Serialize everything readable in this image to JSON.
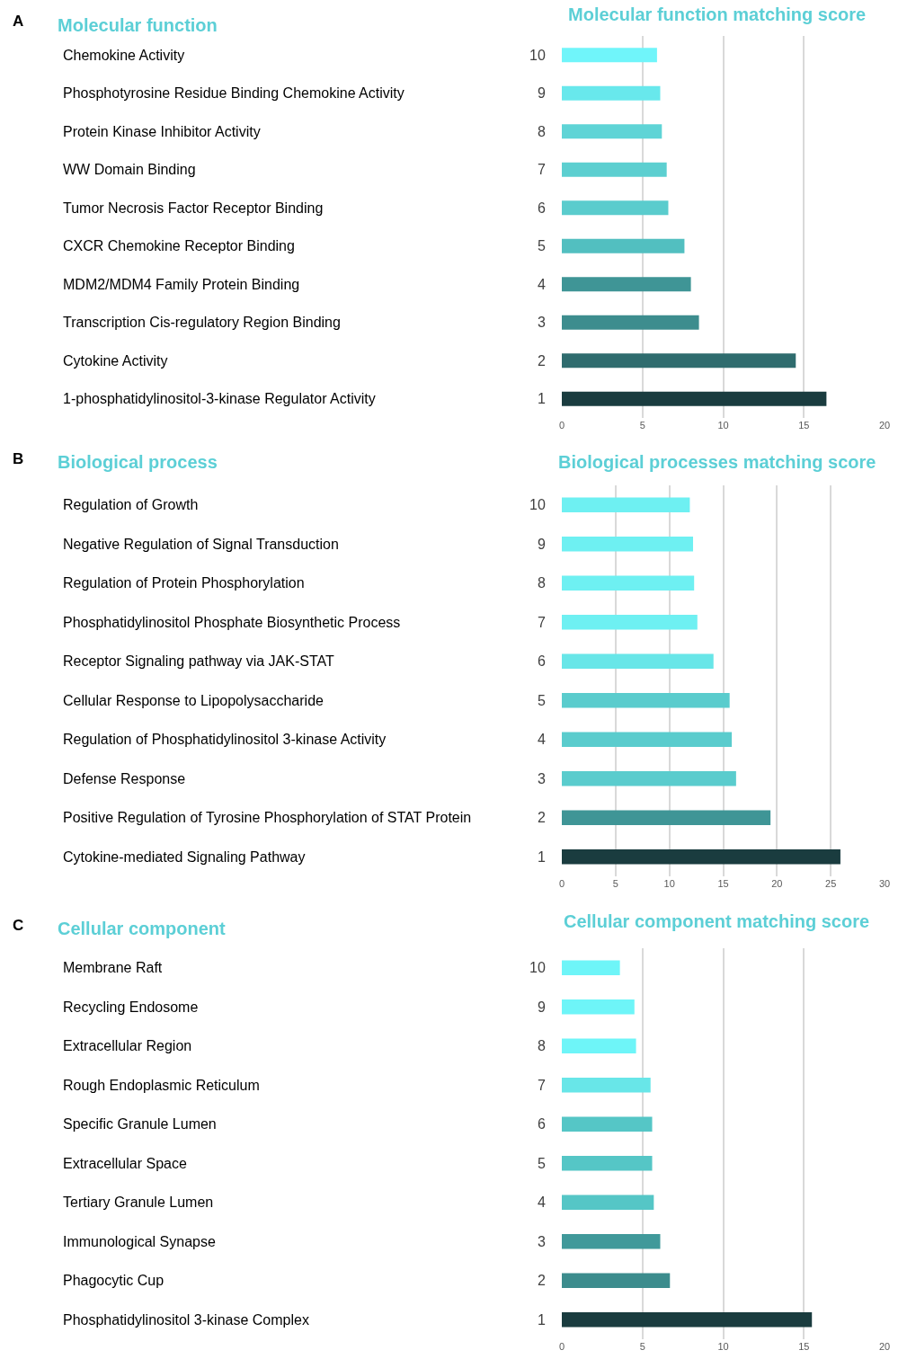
{
  "chart_data": [
    {
      "type": "bar",
      "orientation": "horizontal",
      "title": "Molecular function matching score",
      "categories": [
        "10",
        "9",
        "8",
        "7",
        "6",
        "5",
        "4",
        "3",
        "2",
        "1"
      ],
      "values": [
        5.9,
        6.1,
        6.2,
        6.5,
        6.6,
        7.6,
        8.0,
        8.5,
        14.5,
        16.4
      ],
      "colors": [
        "#70f5fa",
        "#68e8ec",
        "#5fd4d6",
        "#5ccfd0",
        "#5acccd",
        "#52bfc0",
        "#3f9596",
        "#3d8d8e",
        "#2f6c6e",
        "#1a3c3f"
      ],
      "xlim": [
        0,
        20
      ],
      "xticks": [
        0,
        5,
        10,
        15,
        20
      ],
      "grid": "x",
      "annotations": [
        "A",
        "Molecular function",
        "Chemokine Activity",
        "Phosphotyrosine Residue Binding Chemokine Activity",
        "Protein Kinase Inhibitor Activity",
        "WW Domain Binding",
        "Tumor Necrosis Factor Receptor Binding",
        "CXCR Chemokine Receptor Binding",
        "MDM2/MDM4 Family Protein Binding",
        "Transcription Cis-regulatory Region Binding",
        "Cytokine Activity",
        "1-phosphatidylinositol-3-kinase Regulator Activity"
      ]
    },
    {
      "type": "bar",
      "orientation": "horizontal",
      "title": "Biological processes matching score",
      "categories": [
        "10",
        "9",
        "8",
        "7",
        "6",
        "5",
        "4",
        "3",
        "2",
        "1"
      ],
      "values": [
        11.9,
        12.2,
        12.3,
        12.6,
        14.1,
        15.6,
        15.8,
        16.2,
        19.4,
        25.9
      ],
      "colors": [
        "#6ef0f2",
        "#6ef0f2",
        "#6ef0f2",
        "#6ef0f2",
        "#68e6e8",
        "#5acccd",
        "#5acccd",
        "#5acccd",
        "#3f9596",
        "#1a3c3f"
      ],
      "xlim": [
        0,
        30
      ],
      "xticks": [
        0,
        5,
        10,
        15,
        20,
        25,
        30
      ],
      "grid": "x",
      "annotations": [
        "B",
        "Biological process",
        "Regulation of Growth",
        "Negative Regulation of Signal Transduction",
        "Regulation of Protein Phosphorylation",
        "Phosphatidylinositol Phosphate Biosynthetic Process",
        "Receptor Signaling pathway via JAK-STAT",
        "Cellular Response to Lipopolysaccharide",
        "Regulation of Phosphatidylinositol 3-kinase Activity",
        "Defense Response",
        "Positive Regulation of Tyrosine Phosphorylation of STAT Protein",
        "Cytokine-mediated Signaling Pathway"
      ]
    },
    {
      "type": "bar",
      "orientation": "horizontal",
      "title": "Cellular component matching score",
      "categories": [
        "10",
        "9",
        "8",
        "7",
        "6",
        "5",
        "4",
        "3",
        "2",
        "1"
      ],
      "values": [
        3.6,
        4.5,
        4.6,
        5.5,
        5.6,
        5.6,
        5.7,
        6.1,
        6.7,
        15.5
      ],
      "colors": [
        "#6ef5f8",
        "#6ef5f8",
        "#6ef5f8",
        "#68e6e8",
        "#55c6c6",
        "#55c6c6",
        "#55c6c6",
        "#40999a",
        "#3c8c8d",
        "#1a3c3f"
      ],
      "xlim": [
        0,
        20
      ],
      "xticks": [
        0,
        5,
        10,
        15,
        20
      ],
      "grid": "x",
      "annotations": [
        "C",
        "Cellular component",
        "Membrane Raft",
        "Recycling Endosome",
        "Extracellular Region",
        "Rough Endoplasmic Reticulum",
        "Specific Granule Lumen",
        "Extracellular Space",
        "Tertiary Granule Lumen",
        "Immunological Synapse",
        "Phagocytic Cup",
        "Phosphatidylinositol 3-kinase Complex"
      ]
    }
  ]
}
